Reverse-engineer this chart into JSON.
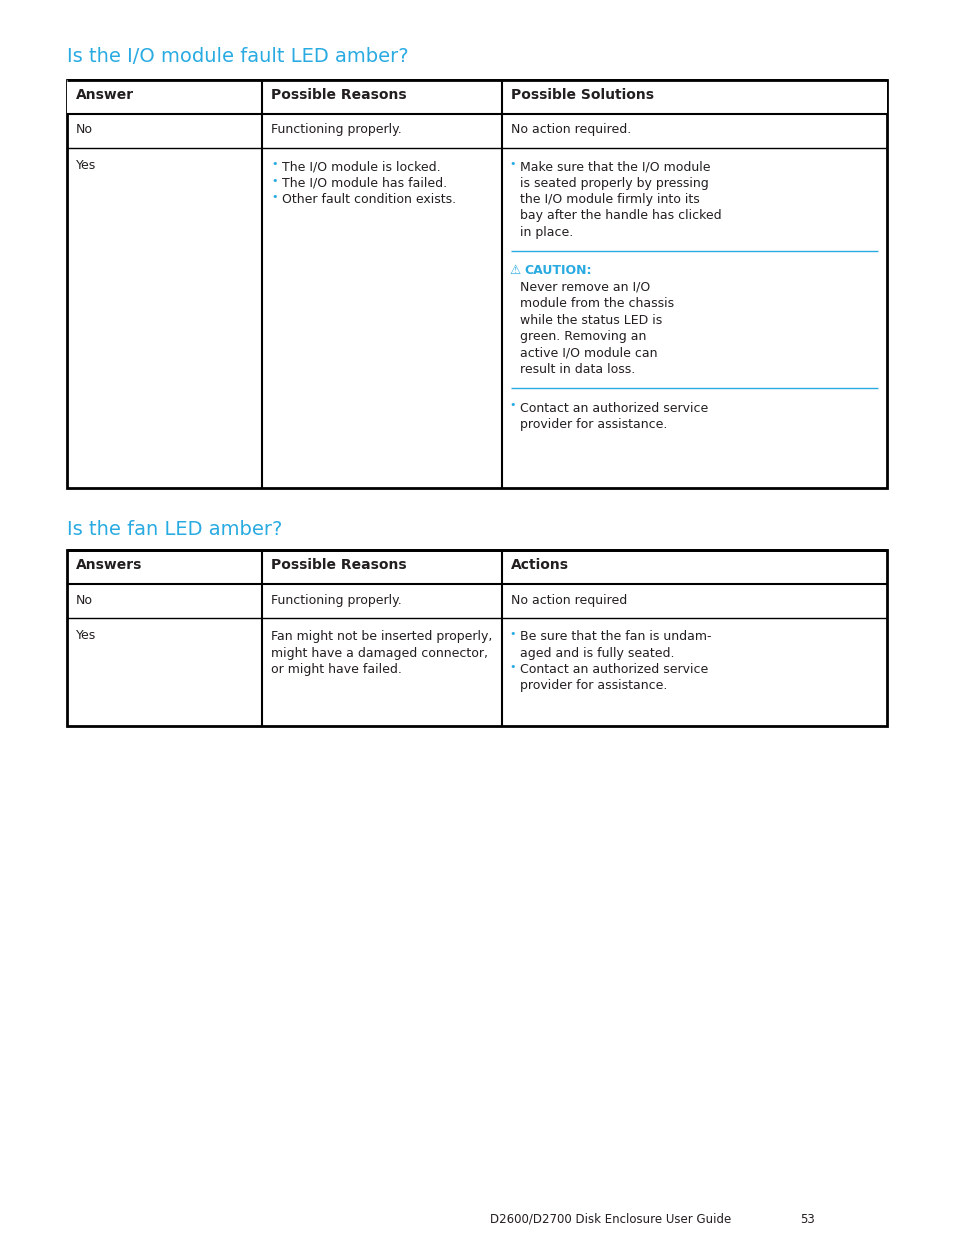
{
  "bg_color": "#ffffff",
  "title1": "Is the I/O module fault LED amber?",
  "title2": "Is the fan LED amber?",
  "title_color": "#29ABE2",
  "title_fontsize": 14,
  "table1_headers": [
    "Answer",
    "Possible Reasons",
    "Possible Solutions"
  ],
  "table2_headers": [
    "Answers",
    "Possible Reasons",
    "Actions"
  ],
  "header_fontsize": 10,
  "body_fontsize": 9,
  "footer_text": "D2600/D2700 Disk Enclosure User Guide",
  "footer_page": "53",
  "caution_color": "#29ABE2",
  "bullet_color": "#29ABE2",
  "text_color": "#231F20",
  "divider_color": "#29ABE2",
  "border_color": "#000000",
  "header_bg": "#ffffff"
}
